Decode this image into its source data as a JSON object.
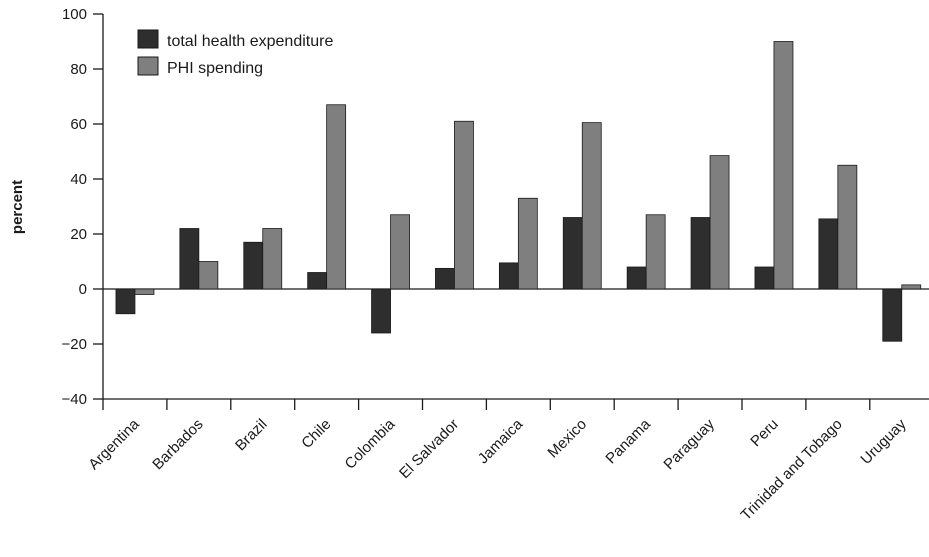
{
  "colors": {
    "series_dark": "#2e2e2e",
    "series_light": "#7f7f7f",
    "axis": "#1a1a1a"
  },
  "chart_data": {
    "type": "bar",
    "title": "",
    "xlabel": "",
    "ylabel": "percent",
    "ylim": [
      -40,
      100
    ],
    "yticks": [
      100,
      80,
      60,
      40,
      20,
      0,
      -20,
      -40
    ],
    "ytick_labels": [
      "100",
      "80",
      "60",
      "40",
      "20",
      "0",
      "−20",
      "−40"
    ],
    "grid": false,
    "legend_position": "top-left",
    "categories": [
      "Argentina",
      "Barbados",
      "Brazil",
      "Chile",
      "Colombia",
      "El Salvador",
      "Jamaica",
      "Mexico",
      "Panama",
      "Paraguay",
      "Peru",
      "Trinidad and Tobago",
      "Uruguay"
    ],
    "series": [
      {
        "name": "total health expenditure",
        "color": "#2e2e2e",
        "values": [
          -9,
          22,
          17,
          6,
          -16,
          7.5,
          9.5,
          26,
          8,
          26,
          8,
          25.5,
          -19
        ]
      },
      {
        "name": "PHI spending",
        "color": "#7f7f7f",
        "values": [
          -2,
          10,
          22,
          67,
          27,
          61,
          33,
          60.5,
          27,
          48.5,
          90,
          45,
          1.5
        ]
      }
    ]
  }
}
